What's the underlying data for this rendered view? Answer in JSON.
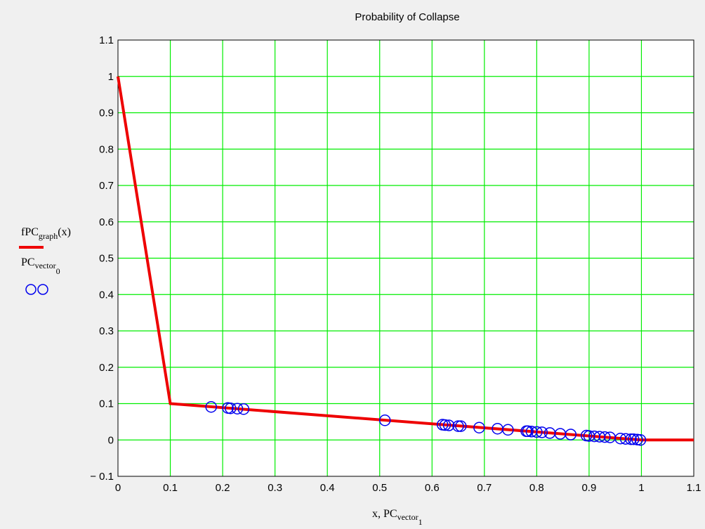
{
  "chart_data": {
    "type": "line",
    "title": "Probability of Collapse",
    "xlabel": {
      "main": "x, PC",
      "sub": "vector",
      "subsub": "1"
    },
    "ylabel_legend": [
      {
        "main": "fPC",
        "sub": "graph",
        "tail": "(x)"
      },
      {
        "main": "PC",
        "sub": "vector",
        "subsub": "0"
      }
    ],
    "xlim": [
      0,
      1.1
    ],
    "ylim": [
      -0.1,
      1.1
    ],
    "x_ticks": [
      "0",
      "0.1",
      "0.2",
      "0.3",
      "0.4",
      "0.5",
      "0.6",
      "0.7",
      "0.8",
      "0.9",
      "1",
      "1.1"
    ],
    "y_ticks": [
      "− 0.1",
      "0",
      "0.1",
      "0.2",
      "0.3",
      "0.4",
      "0.5",
      "0.6",
      "0.7",
      "0.8",
      "0.9",
      "1",
      "1.1"
    ],
    "grid": true,
    "colors": {
      "grid": "#00ee00",
      "line": "#ee0000",
      "markers": "#0000ee",
      "background": "#ffffff"
    },
    "series": [
      {
        "kind": "line",
        "points": [
          [
            0,
            1.0
          ],
          [
            0.1,
            0.1
          ],
          [
            1.0,
            0.0
          ],
          [
            1.1,
            0.0
          ]
        ]
      },
      {
        "kind": "scatter",
        "marker": "circle",
        "points": [
          [
            0.178,
            0.091
          ],
          [
            0.21,
            0.088
          ],
          [
            0.215,
            0.087
          ],
          [
            0.228,
            0.086
          ],
          [
            0.24,
            0.085
          ],
          [
            0.51,
            0.054
          ],
          [
            0.62,
            0.042
          ],
          [
            0.625,
            0.041
          ],
          [
            0.632,
            0.04
          ],
          [
            0.65,
            0.038
          ],
          [
            0.655,
            0.038
          ],
          [
            0.69,
            0.034
          ],
          [
            0.725,
            0.031
          ],
          [
            0.745,
            0.028
          ],
          [
            0.78,
            0.024
          ],
          [
            0.783,
            0.024
          ],
          [
            0.79,
            0.023
          ],
          [
            0.8,
            0.022
          ],
          [
            0.81,
            0.021
          ],
          [
            0.825,
            0.019
          ],
          [
            0.845,
            0.017
          ],
          [
            0.865,
            0.015
          ],
          [
            0.895,
            0.012
          ],
          [
            0.9,
            0.011
          ],
          [
            0.91,
            0.01
          ],
          [
            0.92,
            0.009
          ],
          [
            0.93,
            0.008
          ],
          [
            0.94,
            0.007
          ],
          [
            0.96,
            0.004
          ],
          [
            0.97,
            0.003
          ],
          [
            0.98,
            0.002
          ],
          [
            0.985,
            0.002
          ],
          [
            0.992,
            0.001
          ],
          [
            0.998,
            0.0
          ]
        ]
      }
    ]
  }
}
